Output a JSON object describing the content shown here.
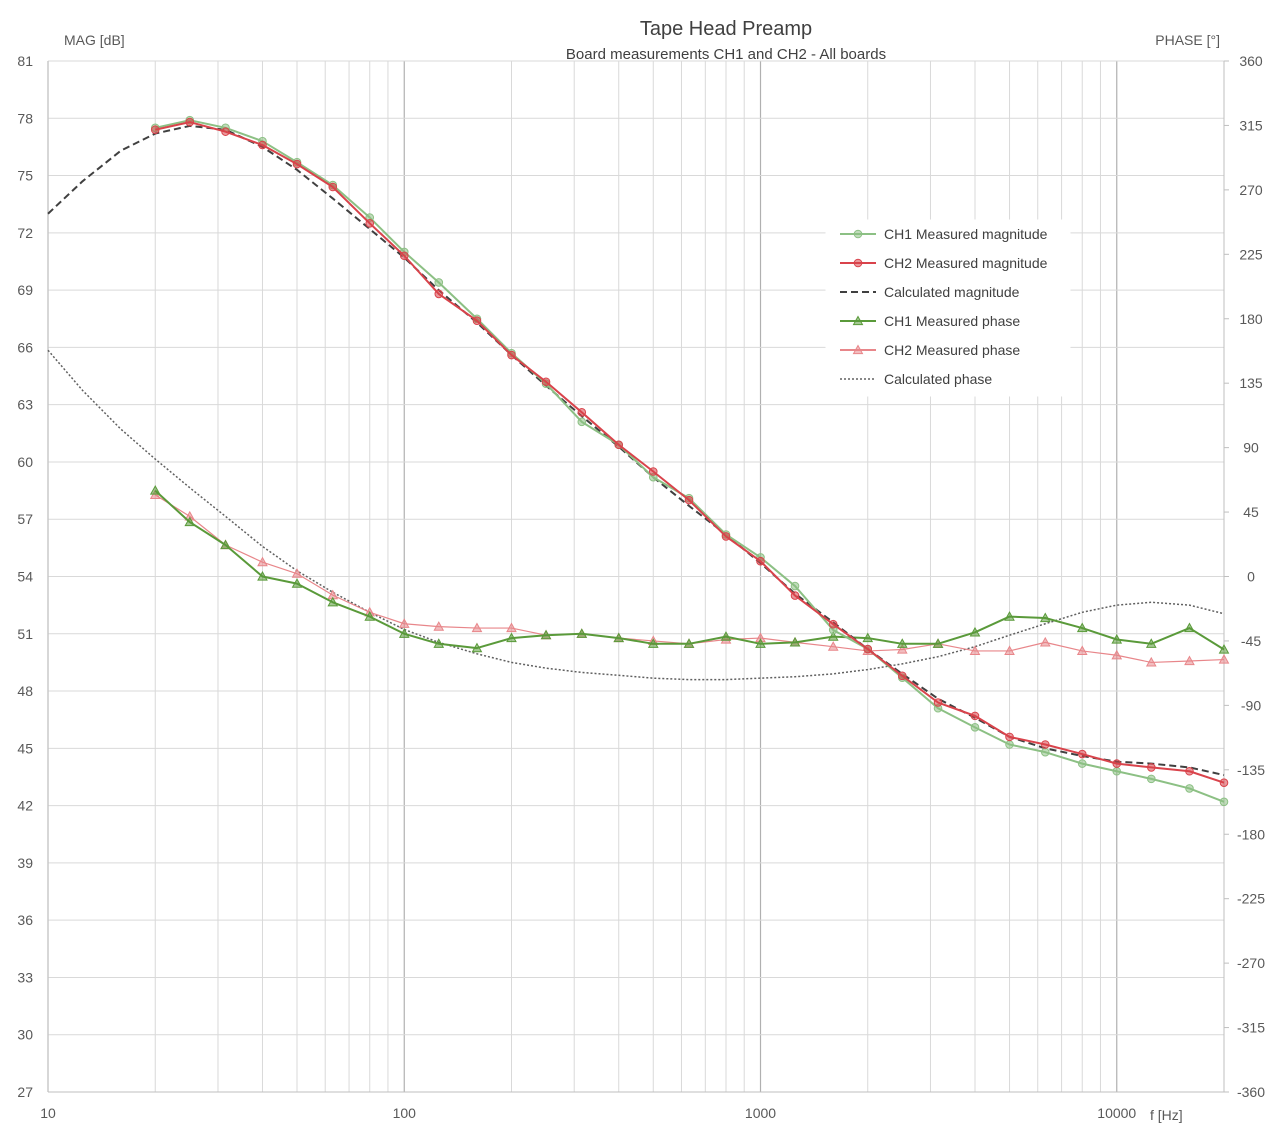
{
  "chart_data": {
    "type": "line",
    "title": "Tape Head Preamp",
    "subtitle": "Board measurements CH1 and CH2 - All boards",
    "xlabel": "f [Hz]",
    "ylabel_left": "MAG [dB]",
    "ylabel_right": "PHASE [°]",
    "x_scale": "log",
    "xlim": [
      10,
      20000
    ],
    "ylim_left": [
      27,
      81
    ],
    "ylim_right": [
      -360,
      360
    ],
    "x_ticks": [
      "10",
      "100",
      "1000",
      "10000"
    ],
    "y_ticks_left": [
      "81",
      "78",
      "75",
      "72",
      "69",
      "66",
      "63",
      "60",
      "57",
      "54",
      "51",
      "48",
      "45",
      "42",
      "39",
      "36",
      "33",
      "30",
      "27"
    ],
    "y_ticks_right": [
      "360",
      "315",
      "270",
      "225",
      "180",
      "135",
      "90",
      "45",
      "0",
      "-45",
      "-90",
      "-135",
      "-180",
      "-225",
      "-270",
      "-315",
      "-360"
    ],
    "grid": true,
    "legend_position": "right",
    "x_measured": [
      20,
      25,
      31.5,
      40,
      50,
      63,
      80,
      100,
      125,
      160,
      200,
      250,
      315,
      400,
      500,
      630,
      800,
      1000,
      1250,
      1600,
      2000,
      2500,
      3150,
      4000,
      5000,
      6300,
      8000,
      10000,
      12500,
      16000,
      20000
    ],
    "series": [
      {
        "name": "CH1 Measured magnitude",
        "axis": "left",
        "color": "#8cc084",
        "marker": "circle",
        "values": [
          77.5,
          77.9,
          77.5,
          76.8,
          75.7,
          74.5,
          72.8,
          71.0,
          69.4,
          67.5,
          65.7,
          64.1,
          62.1,
          60.9,
          59.2,
          58.1,
          56.2,
          55.0,
          53.5,
          51.2,
          50.2,
          48.7,
          47.1,
          46.1,
          45.2,
          44.8,
          44.2,
          43.8,
          43.4,
          42.9,
          42.2
        ]
      },
      {
        "name": "CH2 Measured magnitude",
        "axis": "left",
        "color": "#d9434b",
        "marker": "circle",
        "values": [
          77.4,
          77.8,
          77.3,
          76.6,
          75.6,
          74.4,
          72.5,
          70.8,
          68.8,
          67.4,
          65.6,
          64.2,
          62.6,
          60.9,
          59.5,
          58.0,
          56.1,
          54.8,
          53.0,
          51.5,
          50.2,
          48.8,
          47.4,
          46.7,
          45.6,
          45.2,
          44.7,
          44.2,
          44.0,
          43.8,
          43.2
        ]
      },
      {
        "name": "Calculated magnitude",
        "axis": "left",
        "color": "#404040",
        "dash": "dashed",
        "x": [
          10,
          12.5,
          16,
          20,
          25,
          31.5,
          40,
          50,
          63,
          80,
          100,
          125,
          160,
          200,
          250,
          315,
          400,
          500,
          630,
          800,
          1000,
          1250,
          1600,
          2000,
          2500,
          3150,
          4000,
          5000,
          6300,
          8000,
          10000,
          12500,
          16000,
          20000
        ],
        "values": [
          73.0,
          74.7,
          76.3,
          77.2,
          77.6,
          77.4,
          76.5,
          75.3,
          73.8,
          72.2,
          70.7,
          69.0,
          67.3,
          65.6,
          64.0,
          62.4,
          60.8,
          59.2,
          57.7,
          56.2,
          54.7,
          53.1,
          51.6,
          50.2,
          48.9,
          47.6,
          46.6,
          45.6,
          45.0,
          44.6,
          44.3,
          44.2,
          44.0,
          43.6
        ]
      },
      {
        "name": "CH1 Measured phase",
        "axis": "right",
        "color": "#5a9a3a",
        "marker": "triangle",
        "values": [
          60,
          38,
          22,
          0,
          -5,
          -18,
          -28,
          -40,
          -47,
          -50,
          -43,
          -41,
          -40,
          -43,
          -47,
          -47,
          -42,
          -47,
          -46,
          -42,
          -43,
          -47,
          -47,
          -39,
          -28,
          -29,
          -36,
          -44,
          -47,
          -36,
          -51
        ]
      },
      {
        "name": "CH2 Measured phase",
        "axis": "right",
        "color": "#e8868a",
        "marker": "triangle",
        "values": [
          57,
          42,
          22,
          10,
          2,
          -13,
          -25,
          -33,
          -35,
          -36,
          -36,
          -41,
          -40,
          -43,
          -45,
          -47,
          -44,
          -43,
          -46,
          -49,
          -52,
          -51,
          -47,
          -52,
          -52,
          -46,
          -52,
          -55,
          -60,
          -59,
          -58
        ]
      },
      {
        "name": "Calculated phase",
        "axis": "right",
        "color": "#606060",
        "dash": "dotted",
        "x": [
          10,
          12.5,
          16,
          20,
          25,
          31.5,
          40,
          50,
          63,
          80,
          100,
          125,
          160,
          200,
          250,
          315,
          400,
          500,
          630,
          800,
          1000,
          1250,
          1600,
          2000,
          2500,
          3150,
          4000,
          5000,
          6300,
          8000,
          10000,
          12500,
          16000,
          20000,
          25000
        ],
        "values": [
          158,
          130,
          103,
          82,
          62,
          42,
          21,
          4,
          -11,
          -25,
          -37,
          -46,
          -54,
          -60,
          -64,
          -67,
          -69,
          -71,
          -72,
          -72,
          -71,
          -70,
          -68,
          -65,
          -61,
          -56,
          -49,
          -41,
          -33,
          -25,
          -20,
          -18,
          -20,
          -26,
          -41
        ]
      }
    ]
  }
}
